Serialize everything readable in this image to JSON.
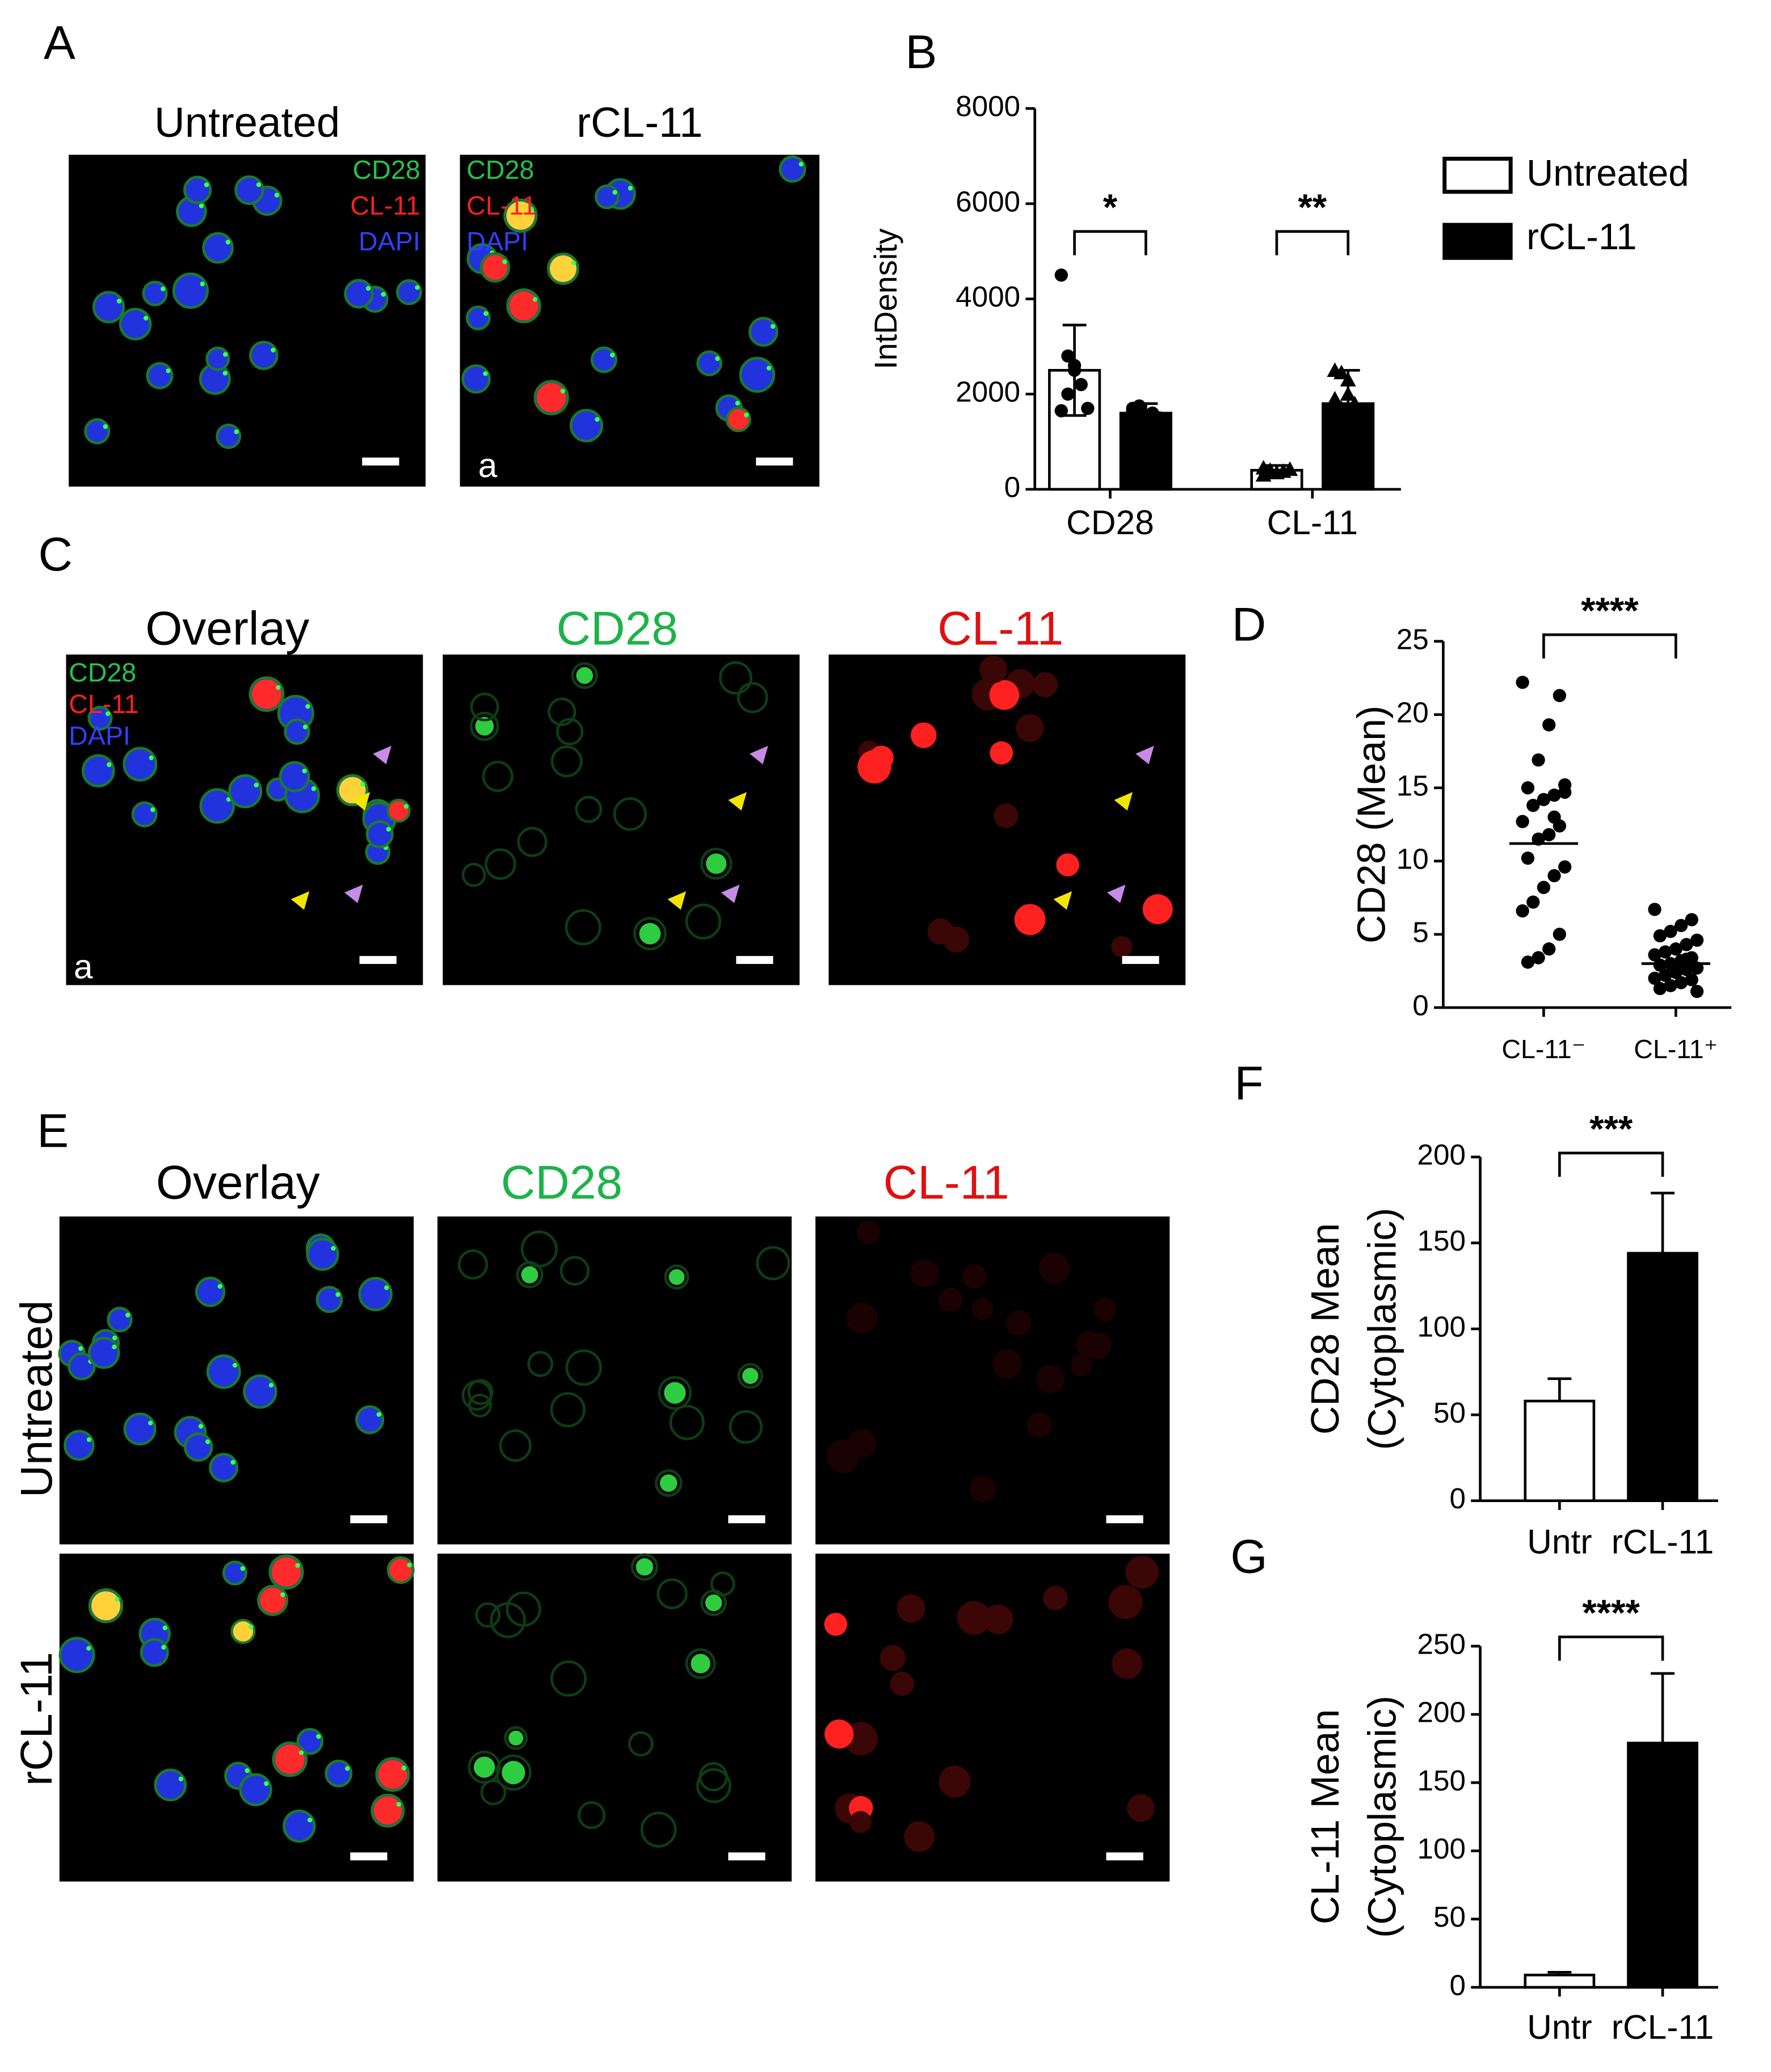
{
  "panel_labels": [
    "A",
    "B",
    "C",
    "D",
    "E",
    "F",
    "G"
  ],
  "image_panels": {
    "A": {
      "columns": [
        "Untreated",
        "rCL-11"
      ],
      "channel_labels": [
        "CD28",
        "CL-11",
        "DAPI"
      ],
      "inset": "a"
    },
    "C": {
      "columns": [
        "Overlay",
        "CD28",
        "CL-11"
      ],
      "channel_labels": [
        "CD28",
        "CL-11",
        "DAPI"
      ],
      "inset": "a"
    },
    "E": {
      "columns": [
        "Overlay",
        "CD28",
        "CL-11"
      ],
      "rows": [
        "Untreated",
        "rCL-11"
      ]
    }
  },
  "chart_data": [
    {
      "type": "bar",
      "ylabel": [
        "IntDensity"
      ],
      "categories": [
        "CD28",
        "CL-11"
      ],
      "ylim": [
        0,
        8000
      ],
      "yticks": [
        0,
        2000,
        4000,
        6000,
        8000
      ],
      "significance": [
        "*",
        "**"
      ],
      "series": [
        {
          "name": "Untreated",
          "color": "#ffffff",
          "values": [
            2500,
            400
          ],
          "errors": [
            950,
            100
          ],
          "points": [
            [
              4500,
              2800,
              2600,
              2200,
              1700,
              1650,
              2000,
              2500
            ],
            [
              450,
              400,
              350,
              380,
              420,
              300,
              360
            ]
          ]
        },
        {
          "name": "rCL-11",
          "color": "#000000",
          "values": [
            1600,
            1800
          ],
          "errors": [
            200,
            700
          ],
          "points": [
            [
              1700,
              1650,
              1550,
              1600,
              1500,
              1650,
              1750
            ],
            [
              2500,
              2450,
              2000,
              1800,
              1600,
              1900,
              1700,
              2300
            ]
          ]
        }
      ]
    },
    {
      "type": "scatter",
      "ylabel": [
        "CD28 (Mean)"
      ],
      "categories": [
        "CL-11⁻",
        "CL-11⁺"
      ],
      "ylim": [
        0,
        25
      ],
      "yticks": [
        0,
        5,
        10,
        15,
        20,
        25
      ],
      "significance": [
        "****"
      ],
      "means": [
        11.2,
        3.0
      ],
      "points": [
        [
          22.2,
          21.3,
          19.3,
          16.9,
          15.0,
          14.7,
          14.5,
          14.2,
          13.8,
          12.7,
          12.4,
          11.8,
          11.5,
          10.2,
          9.6,
          9.0,
          8.2,
          7.2,
          6.6,
          5.0,
          4.0,
          3.4,
          3.1,
          15.2,
          13.0
        ],
        [
          6.7,
          6.0,
          5.6,
          5.2,
          4.9,
          4.6,
          4.3,
          4.0,
          3.8,
          3.6,
          3.4,
          3.2,
          3.0,
          2.9,
          2.7,
          2.6,
          2.4,
          2.2,
          2.0,
          1.9,
          1.7,
          1.5,
          1.3,
          1.1,
          3.3
        ]
      ]
    },
    {
      "type": "column",
      "ylabel": [
        "CD28 Mean",
        "(Cytoplasmic)"
      ],
      "categories": [
        "Untr",
        "rCL-11"
      ],
      "values": [
        58,
        144
      ],
      "errors": [
        13,
        35
      ],
      "colors": [
        "#ffffff",
        "#000000"
      ],
      "ylim": [
        0,
        200
      ],
      "yticks": [
        0,
        50,
        100,
        150,
        200
      ],
      "significance": [
        "***"
      ]
    },
    {
      "type": "column",
      "ylabel": [
        "CL-11 Mean",
        "(Cytoplasmic)"
      ],
      "categories": [
        "Untr",
        "rCL-11"
      ],
      "values": [
        9,
        179
      ],
      "errors": [
        2,
        51
      ],
      "colors": [
        "#ffffff",
        "#000000"
      ],
      "ylim": [
        0,
        250
      ],
      "yticks": [
        0,
        50,
        100,
        150,
        200,
        250
      ],
      "significance": [
        "****"
      ]
    }
  ]
}
